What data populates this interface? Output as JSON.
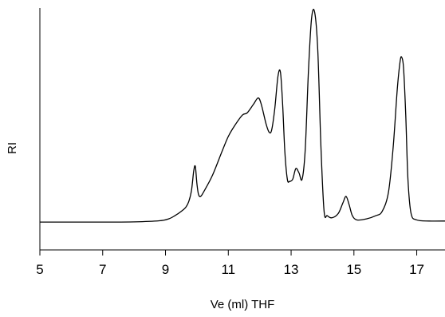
{
  "chart_data": {
    "type": "line",
    "title": "",
    "xlabel": "Ve (ml) THF",
    "ylabel": "RI",
    "xlim": [
      5,
      17.9
    ],
    "ylim": [
      -0.13,
      1.0
    ],
    "x_ticks": [
      5,
      7,
      9,
      11,
      13,
      15,
      17
    ],
    "y_ticks": [],
    "grid": false,
    "legend": "none",
    "line_color": "#000000",
    "axis_color": "#000000",
    "series": [
      {
        "x": [
          5.0,
          6.0,
          7.0,
          8.0,
          8.8,
          9.1,
          9.3,
          9.5,
          9.65,
          9.75,
          9.83,
          9.9,
          9.95,
          10.0,
          10.05,
          10.12,
          10.25,
          10.5,
          10.8,
          11.0,
          11.2,
          11.45,
          11.6,
          11.8,
          11.95,
          12.05,
          12.2,
          12.3,
          12.38,
          12.48,
          12.58,
          12.66,
          12.73,
          12.8,
          12.88,
          12.95,
          13.05,
          13.15,
          13.25,
          13.35,
          13.45,
          13.55,
          13.65,
          13.75,
          13.85,
          13.95,
          14.05,
          14.15,
          14.3,
          14.5,
          14.65,
          14.75,
          14.85,
          14.95,
          15.1,
          15.4,
          15.7,
          15.9,
          16.1,
          16.25,
          16.38,
          16.47,
          16.52,
          16.58,
          16.65,
          16.72,
          16.82,
          17.0,
          17.4,
          17.9
        ],
        "y": [
          0.0,
          0.0,
          0.0,
          0.001,
          0.006,
          0.015,
          0.03,
          0.05,
          0.07,
          0.1,
          0.15,
          0.24,
          0.26,
          0.18,
          0.13,
          0.12,
          0.15,
          0.22,
          0.33,
          0.4,
          0.45,
          0.5,
          0.51,
          0.55,
          0.58,
          0.55,
          0.46,
          0.42,
          0.43,
          0.53,
          0.68,
          0.7,
          0.55,
          0.33,
          0.2,
          0.19,
          0.2,
          0.25,
          0.23,
          0.2,
          0.34,
          0.7,
          0.95,
          0.98,
          0.8,
          0.35,
          0.05,
          0.03,
          0.02,
          0.04,
          0.09,
          0.12,
          0.08,
          0.03,
          0.01,
          0.015,
          0.03,
          0.05,
          0.14,
          0.35,
          0.62,
          0.75,
          0.77,
          0.72,
          0.5,
          0.2,
          0.04,
          0.01,
          0.005,
          0.005
        ]
      }
    ]
  }
}
